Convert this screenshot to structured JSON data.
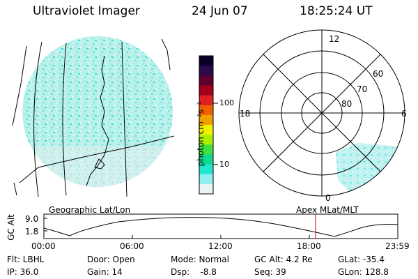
{
  "header": {
    "instrument": "Ultraviolet Imager",
    "date": "24 Jun 07",
    "time": "18:25:24 UT"
  },
  "colorbar": {
    "unit_label": "photon cm⁻²s⁻¹",
    "ticks": [
      "100",
      "10"
    ],
    "colors": [
      "#0a0028",
      "#2a0a48",
      "#600030",
      "#a0001e",
      "#e02020",
      "#f06000",
      "#f0a000",
      "#f0f000",
      "#a8f000",
      "#40e040",
      "#10d890",
      "#20e8d0",
      "#90f0f0",
      "#e8f4f4"
    ]
  },
  "map_labels": {
    "left": "Geographic Lat/Lon",
    "right": "Apex MLat/MLT"
  },
  "polar": {
    "mlt_labels": [
      "12",
      "18",
      "6",
      "0"
    ],
    "lat_labels": [
      "60",
      "70",
      "80"
    ]
  },
  "altitude_plot": {
    "ylabel": "GC Alt",
    "yticks": [
      "9.0",
      "1.8"
    ],
    "xticks": [
      "00:00",
      "06:00",
      "12:00",
      "18:00",
      "23:59"
    ],
    "marker_color": "#cc0000"
  },
  "status": {
    "row1": {
      "flt": "Flt: LBHL",
      "door": "Door: Open",
      "mode": "Mode: Normal",
      "gc_alt": "GC Alt: 4.2 Re",
      "glat": "GLat: -35.4"
    },
    "row2": {
      "ip": "IP: 36.0",
      "gain": "Gain: 14",
      "dsp": "Dsp:    -8.8",
      "seq": "Seq: 39",
      "glon": "GLon: 128.8"
    }
  }
}
